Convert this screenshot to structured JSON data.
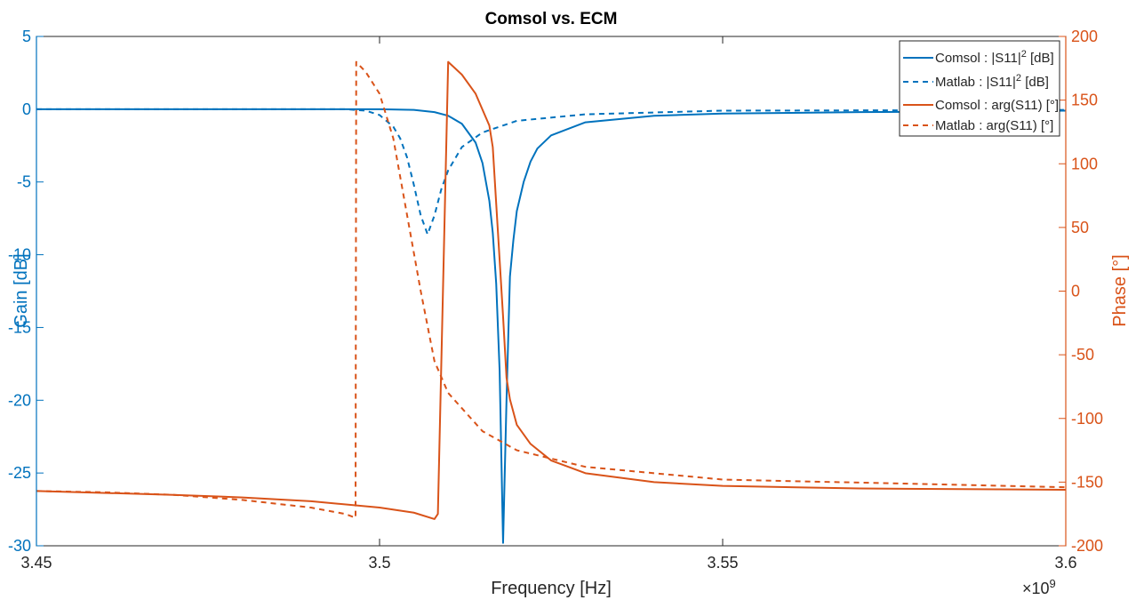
{
  "chart_data": {
    "type": "line",
    "title": "Comsol vs. ECM",
    "xlabel": "Frequency [Hz]",
    "x_exponent_label": "×10",
    "x_exponent_power": "9",
    "ylabel_left": "Gain [dB]",
    "ylabel_right": "Phase [°]",
    "xlim": [
      3.45,
      3.6
    ],
    "ylim_left": [
      -30,
      5
    ],
    "ylim_right": [
      -200,
      200
    ],
    "x_ticks": [
      3.45,
      3.5,
      3.55,
      3.6
    ],
    "x_tick_labels": [
      "3.45",
      "3.5",
      "3.55",
      "3.6"
    ],
    "y_left_ticks": [
      5,
      0,
      -5,
      -10,
      -15,
      -20,
      -25,
      -30
    ],
    "y_left_tick_labels": [
      "5",
      "0",
      "-5",
      "-10",
      "-15",
      "-20",
      "-25",
      "-30"
    ],
    "y_right_ticks": [
      200,
      150,
      100,
      50,
      0,
      -50,
      -100,
      -150,
      -200
    ],
    "y_right_tick_labels": [
      "200",
      "150",
      "100",
      "50",
      "0",
      "-50",
      "-100",
      "-150",
      "-200"
    ],
    "grid": false,
    "legend_position": "top-right",
    "colors": {
      "blue": "#0072BD",
      "orange": "#D95319",
      "axis": "#262626"
    },
    "series": [
      {
        "name": "Comsol : |S11|² [dB]",
        "legend_main": "Comsol : |S11|",
        "legend_sup": "2",
        "legend_tail": " [dB]",
        "axis": "left",
        "color": "#0072BD",
        "dash": "solid",
        "x": [
          3.45,
          3.48,
          3.49,
          3.5,
          3.505,
          3.508,
          3.51,
          3.512,
          3.514,
          3.515,
          3.516,
          3.5165,
          3.517,
          3.5175,
          3.518,
          3.5185,
          3.519,
          3.5195,
          3.52,
          3.521,
          3.522,
          3.523,
          3.525,
          3.53,
          3.54,
          3.55,
          3.57,
          3.59,
          3.6
        ],
        "y": [
          0.0,
          0.0,
          0.0,
          0.0,
          -0.05,
          -0.2,
          -0.45,
          -1.0,
          -2.3,
          -3.7,
          -6.3,
          -8.5,
          -12.0,
          -18.0,
          -29.8,
          -20.0,
          -11.5,
          -9.0,
          -7.0,
          -5.0,
          -3.6,
          -2.7,
          -1.8,
          -0.9,
          -0.45,
          -0.3,
          -0.2,
          -0.15,
          -0.1
        ]
      },
      {
        "name": "Matlab : |S11|² [dB]",
        "legend_main": "Matlab : |S11|",
        "legend_sup": "2",
        "legend_tail": " [dB]",
        "axis": "left",
        "color": "#0072BD",
        "dash": "dashed",
        "x": [
          3.45,
          3.48,
          3.495,
          3.498,
          3.5,
          3.502,
          3.503,
          3.504,
          3.505,
          3.506,
          3.507,
          3.508,
          3.509,
          3.51,
          3.512,
          3.515,
          3.52,
          3.53,
          3.55,
          3.6
        ],
        "y": [
          0.0,
          0.0,
          0.0,
          -0.1,
          -0.4,
          -1.2,
          -2.0,
          -3.3,
          -5.2,
          -7.3,
          -8.6,
          -7.3,
          -5.5,
          -4.2,
          -2.6,
          -1.6,
          -0.8,
          -0.35,
          -0.1,
          -0.05
        ]
      },
      {
        "name": "Comsol : arg(S11) [°]",
        "legend_main": "Comsol : arg(S11) [°]",
        "legend_sup": "",
        "legend_tail": "",
        "axis": "right",
        "color": "#D95319",
        "dash": "solid",
        "x": [
          3.45,
          3.47,
          3.48,
          3.49,
          3.5,
          3.505,
          3.508,
          3.5085,
          3.51,
          3.512,
          3.514,
          3.516,
          3.5165,
          3.518,
          3.5185,
          3.519,
          3.52,
          3.522,
          3.525,
          3.53,
          3.54,
          3.55,
          3.57,
          3.6
        ],
        "y": [
          -157,
          -160,
          -162,
          -165,
          -170,
          -174,
          -179,
          -175,
          180,
          170,
          155,
          130,
          113,
          -20,
          -68,
          -85,
          -105,
          -120,
          -133,
          -143,
          -150,
          -153,
          -155,
          -156
        ]
      },
      {
        "name": "Matlab : arg(S11) [°]",
        "legend_main": "Matlab : arg(S11) [°]",
        "legend_sup": "",
        "legend_tail": "",
        "axis": "right",
        "color": "#D95319",
        "dash": "dashed",
        "x": [
          3.45,
          3.46,
          3.47,
          3.48,
          3.49,
          3.495,
          3.4965,
          3.4966,
          3.498,
          3.5,
          3.502,
          3.504,
          3.506,
          3.508,
          3.51,
          3.515,
          3.52,
          3.53,
          3.55,
          3.6
        ],
        "y": [
          -157,
          -158,
          -160,
          -164,
          -170,
          -175,
          -178,
          180,
          172,
          155,
          120,
          60,
          0,
          -55,
          -80,
          -110,
          -125,
          -138,
          -148,
          -154
        ]
      }
    ]
  }
}
